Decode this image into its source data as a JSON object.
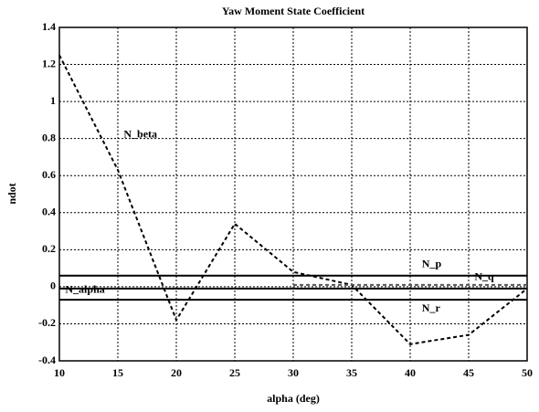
{
  "chart_data": {
    "type": "line",
    "title": "Yaw Moment State Coefficient",
    "xlabel": "alpha (deg)",
    "ylabel": "ndot",
    "x": [
      10,
      15,
      20,
      25,
      30,
      35,
      40,
      45,
      50
    ],
    "series": [
      {
        "name": "N_beta",
        "color": "#000000",
        "dash": true,
        "values": [
          1.25,
          0.63,
          -0.18,
          0.34,
          0.08,
          0.01,
          -0.31,
          -0.26,
          -0.01
        ]
      },
      {
        "name": "N_p",
        "color": "#000000",
        "dash": false,
        "values": [
          0.06,
          0.06,
          0.06,
          0.06,
          0.06,
          0.06,
          0.06,
          0.06,
          0.06
        ]
      },
      {
        "name": "N_q",
        "color": "#555555",
        "dash": true,
        "values": [
          null,
          null,
          null,
          null,
          0.01,
          0.01,
          0.01,
          0.01,
          0.01
        ]
      },
      {
        "name": "N_alpha",
        "color": "#000000",
        "dash": false,
        "values": [
          -0.01,
          -0.01,
          -0.01,
          -0.01,
          -0.01,
          -0.01,
          -0.01,
          -0.01,
          -0.01
        ]
      },
      {
        "name": "N_r",
        "color": "#000000",
        "dash": false,
        "values": [
          -0.07,
          -0.07,
          -0.07,
          -0.07,
          -0.07,
          -0.07,
          -0.07,
          -0.07,
          -0.07
        ]
      }
    ],
    "xlim": [
      10,
      50
    ],
    "xticks": [
      10,
      15,
      20,
      25,
      30,
      35,
      40,
      45,
      50
    ],
    "ylim": [
      -0.4,
      1.4
    ],
    "yticks": [
      -0.4,
      -0.2,
      0,
      0.2,
      0.4,
      0.6,
      0.8,
      1,
      1.2,
      1.4
    ],
    "grid": true
  }
}
